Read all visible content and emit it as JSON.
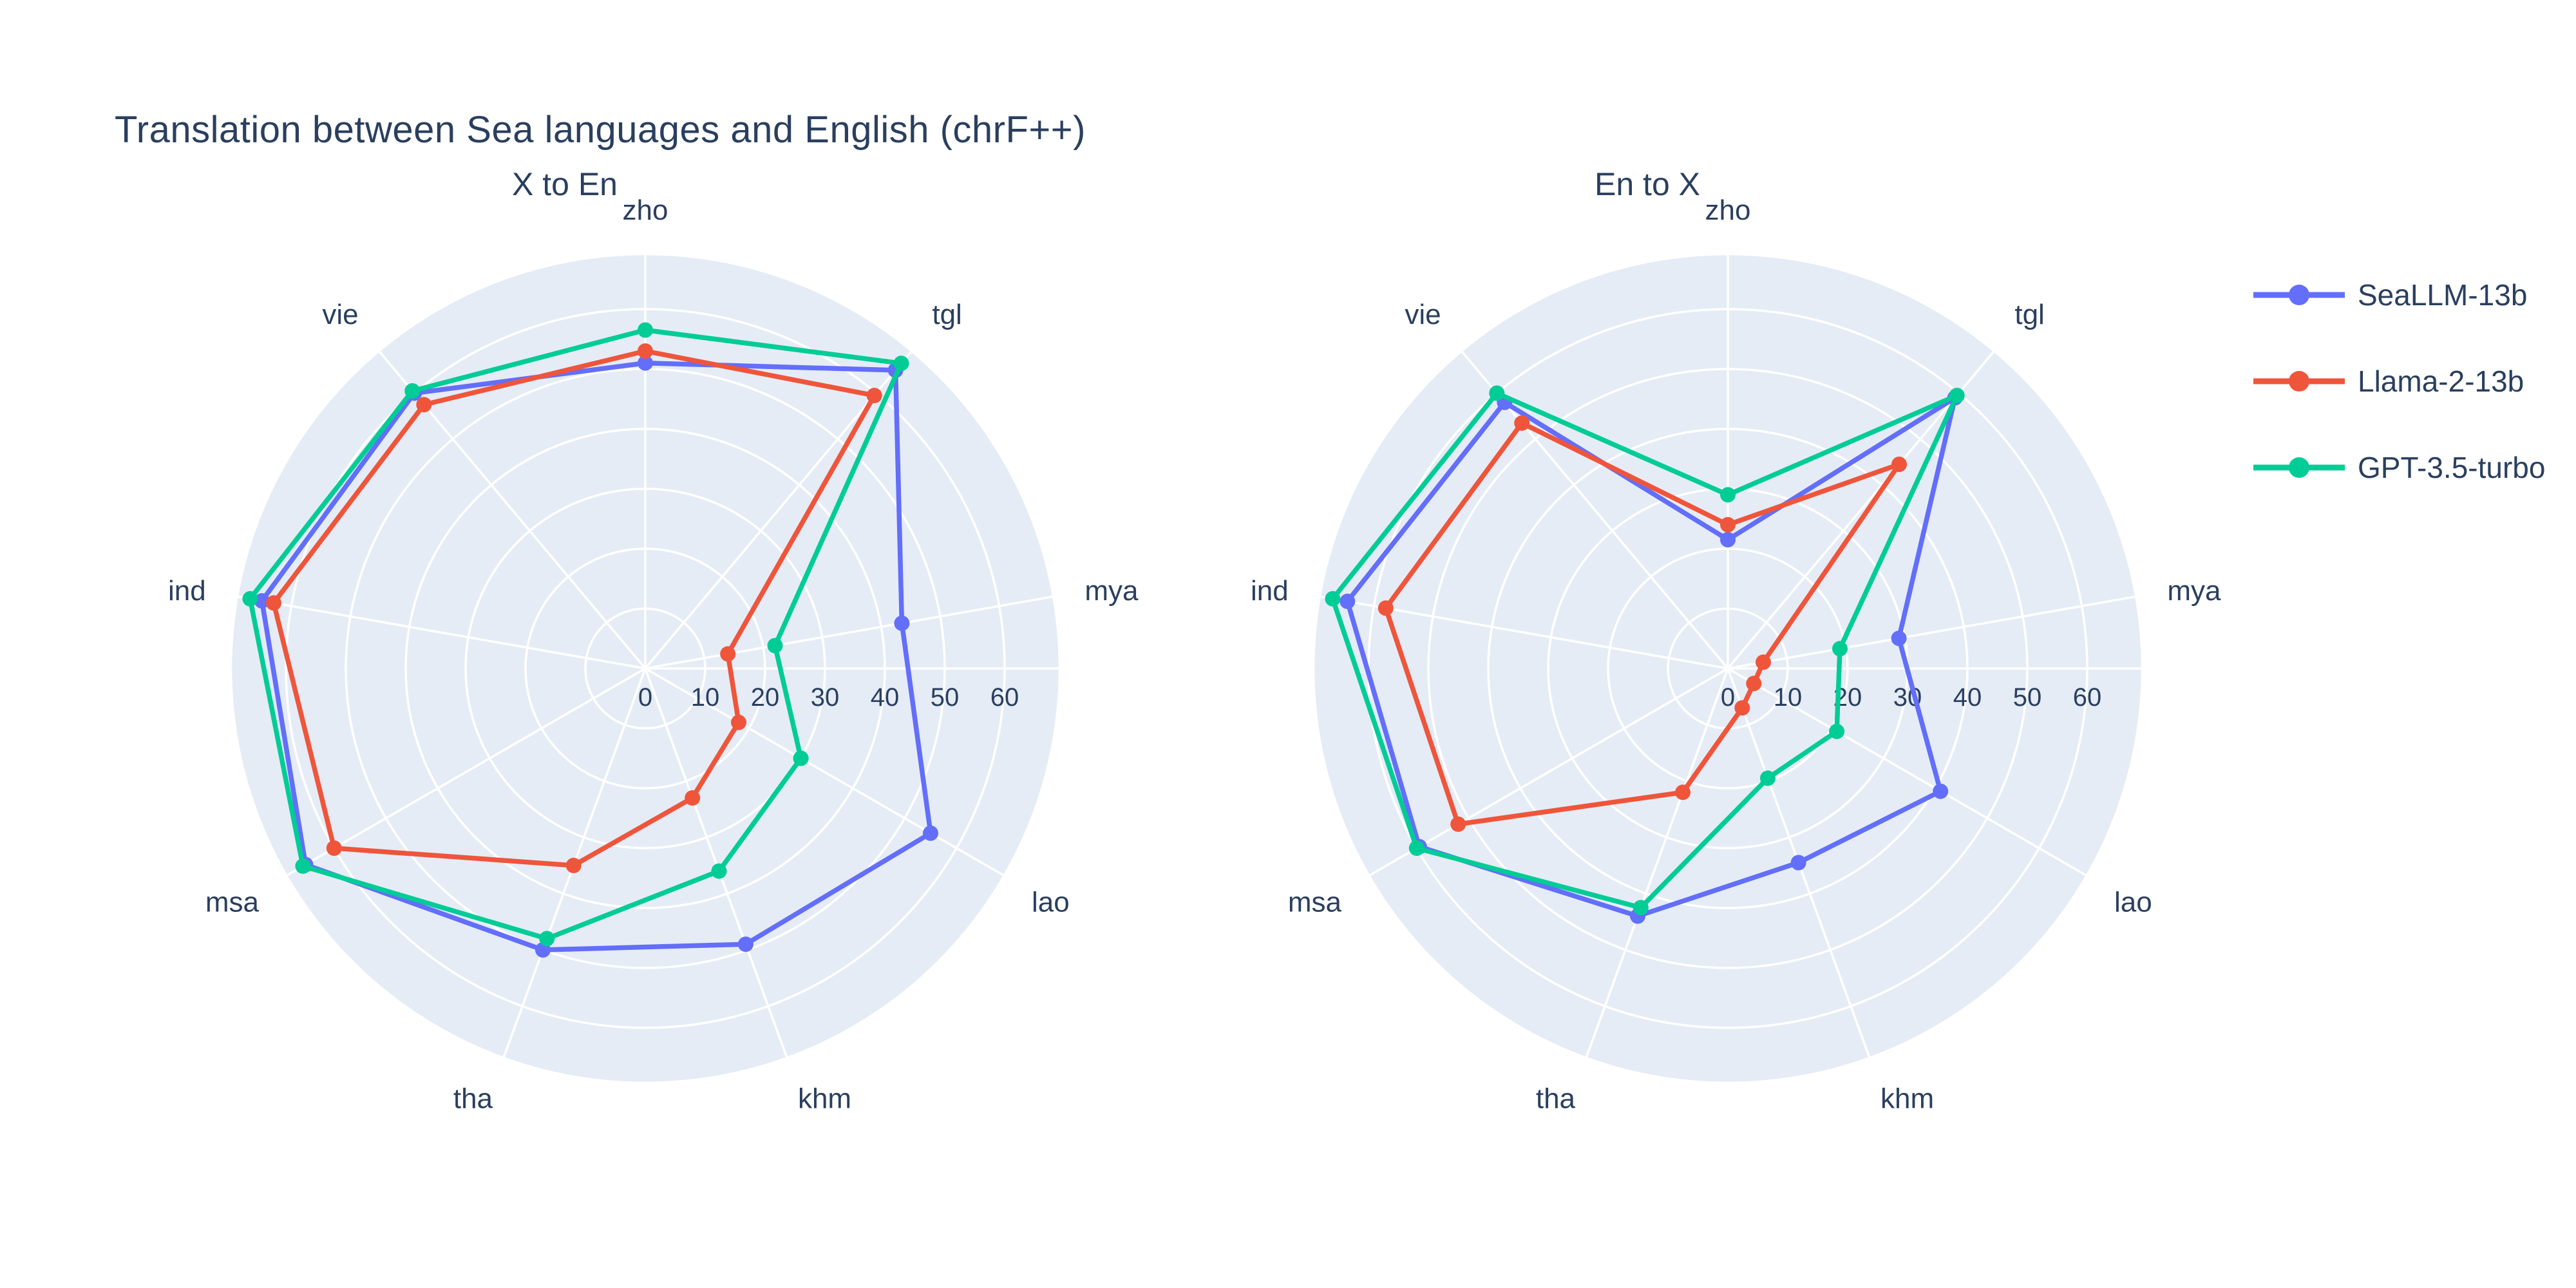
{
  "title": "Translation between Sea languages and English (chrF++)",
  "legend": {
    "items": [
      {
        "label": "SeaLLM-13b",
        "color": "#636EFA"
      },
      {
        "label": "Llama-2-13b",
        "color": "#EF553B"
      },
      {
        "label": "GPT-3.5-turbo",
        "color": "#00CC96"
      }
    ]
  },
  "style": {
    "panel_color": "#E5ECF6",
    "grid_color": "#ffffff",
    "text_color": "#2a3f5f"
  },
  "chart_data": [
    {
      "type": "radar",
      "title": "X to En",
      "categories": [
        "zho",
        "tgl",
        "mya",
        "lao",
        "khm",
        "tha",
        "msa",
        "ind",
        "vie"
      ],
      "radial_ticks": [
        0,
        10,
        20,
        30,
        40,
        50,
        60
      ],
      "radial_max": 69,
      "grid": true,
      "legend_position": "right",
      "series": [
        {
          "name": "SeaLLM-13b",
          "color": "#636EFA",
          "values": [
            51,
            65,
            43.5,
            55,
            49,
            50,
            65.5,
            65,
            60
          ]
        },
        {
          "name": "Llama-2-13b",
          "color": "#EF553B",
          "values": [
            53,
            59.5,
            14,
            18,
            23,
            35,
            60,
            63,
            57.5
          ]
        },
        {
          "name": "GPT-3.5-turbo",
          "color": "#00CC96",
          "values": [
            56.5,
            66.5,
            22,
            30,
            36,
            48,
            66,
            67,
            60.5
          ]
        }
      ]
    },
    {
      "type": "radar",
      "title": "En to X",
      "categories": [
        "zho",
        "tgl",
        "mya",
        "lao",
        "khm",
        "tha",
        "msa",
        "ind",
        "vie"
      ],
      "radial_ticks": [
        0,
        10,
        20,
        30,
        40,
        50,
        60
      ],
      "radial_max": 69,
      "grid": true,
      "legend_position": "right",
      "series": [
        {
          "name": "SeaLLM-13b",
          "color": "#636EFA",
          "values": [
            21.5,
            59,
            29,
            41,
            34.5,
            44,
            59.5,
            64.5,
            58
          ]
        },
        {
          "name": "Llama-2-13b",
          "color": "#EF553B",
          "values": [
            24,
            44.5,
            6,
            5,
            7,
            22,
            52,
            58,
            53.5
          ]
        },
        {
          "name": "GPT-3.5-turbo",
          "color": "#00CC96",
          "values": [
            29,
            59.5,
            19,
            21,
            19.5,
            42.5,
            60,
            67,
            60
          ]
        }
      ]
    }
  ]
}
